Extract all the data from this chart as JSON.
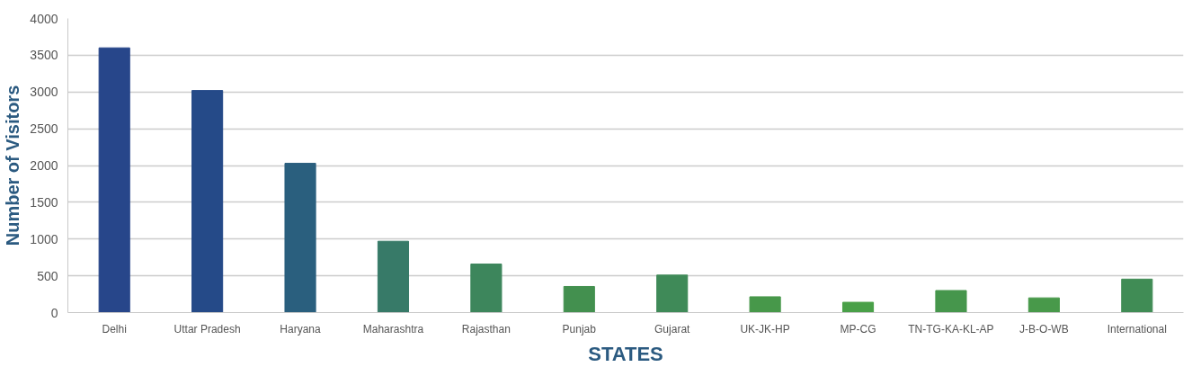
{
  "chart_data": {
    "type": "bar",
    "xlabel": "STATES",
    "ylabel": "Number of Visitors",
    "categories": [
      "Delhi",
      "Uttar Pradesh",
      "Haryana",
      "Maharashtra",
      "Rajasthan",
      "Punjab",
      "Gujarat",
      "UK-JK-HP",
      "MP-CG",
      "TN-TG-KA-KL-AP",
      "J-B-O-WB",
      "International"
    ],
    "values": [
      3600,
      3020,
      2030,
      970,
      660,
      355,
      510,
      215,
      140,
      300,
      200,
      455
    ],
    "colors": [
      "#27468a",
      "#254a88",
      "#2a5f7e",
      "#377a68",
      "#3d865c",
      "#43904f",
      "#3f8a58",
      "#47984a",
      "#49a048",
      "#46964c",
      "#48994a",
      "#408c55"
    ],
    "ylim": [
      0,
      4000
    ],
    "yticks": [
      0,
      500,
      1000,
      1500,
      2000,
      2500,
      3000,
      3500,
      4000
    ],
    "grid": "y"
  }
}
